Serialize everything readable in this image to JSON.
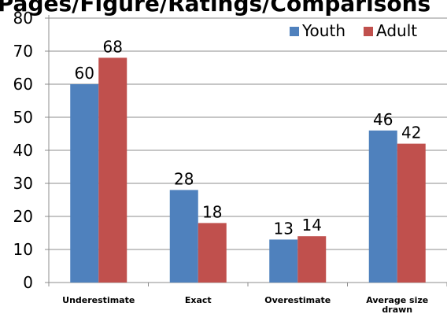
{
  "chart_data": {
    "type": "bar",
    "title": "Pages/Figure/Ratings/Comparisons",
    "categories": [
      "Underestimate",
      "Exact",
      "Overestimate",
      "Average size drawn"
    ],
    "series": [
      {
        "name": "Youth",
        "values": [
          60,
          28,
          13,
          46
        ],
        "color": "#4f81bd"
      },
      {
        "name": "Adult",
        "values": [
          68,
          18,
          14,
          42
        ],
        "color": "#c0504d"
      }
    ],
    "ylim": [
      0,
      80
    ],
    "yticks": [
      0,
      10,
      20,
      30,
      40,
      50,
      60,
      70,
      80
    ],
    "xlabel": "",
    "ylabel": "",
    "grid": true,
    "legend": "top-right"
  }
}
